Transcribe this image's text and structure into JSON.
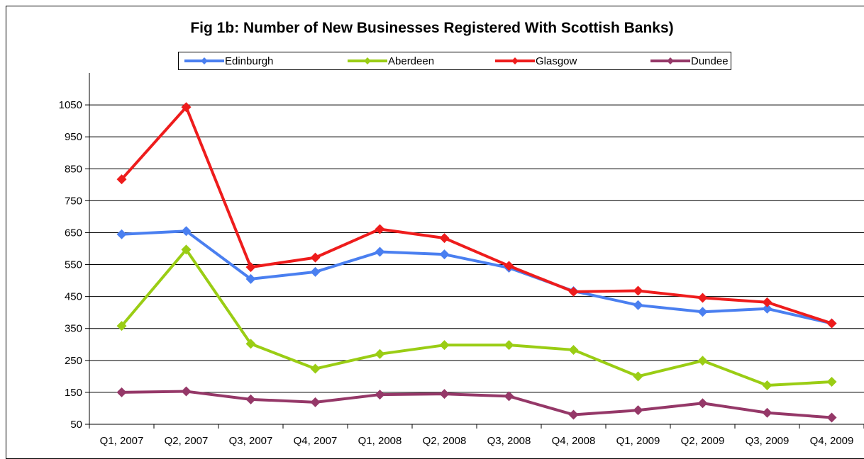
{
  "chart_data": {
    "type": "line",
    "title": "Fig 1b: Number of New Businesses Registered With Scottish Banks)",
    "xlabel": "",
    "ylabel": "",
    "categories": [
      "Q1, 2007",
      "Q2, 2007",
      "Q3, 2007",
      "Q4, 2007",
      "Q1, 2008",
      "Q2, 2008",
      "Q3, 2008",
      "Q4, 2008",
      "Q1, 2009",
      "Q2, 2009",
      "Q3, 2009",
      "Q4, 2009"
    ],
    "yticks": [
      "50",
      "150",
      "250",
      "350",
      "450",
      "550",
      "650",
      "750",
      "850",
      "950",
      "1050"
    ],
    "ylim": [
      50,
      1150
    ],
    "grid": true,
    "legend_position": "top",
    "series": [
      {
        "name": "Edinburgh",
        "color": "#4a7ff0",
        "values": [
          645,
          655,
          505,
          527,
          590,
          582,
          540,
          467,
          423,
          402,
          412,
          366
        ]
      },
      {
        "name": "Aberdeen",
        "color": "#9acd14",
        "values": [
          358,
          597,
          302,
          224,
          270,
          298,
          298,
          283,
          200,
          249,
          172,
          183
        ]
      },
      {
        "name": "Glasgow",
        "color": "#ee1c1c",
        "values": [
          817,
          1043,
          542,
          572,
          661,
          633,
          546,
          465,
          468,
          446,
          432,
          366
        ]
      },
      {
        "name": "Dundee",
        "color": "#953868",
        "values": [
          150,
          153,
          128,
          119,
          143,
          145,
          138,
          80,
          94,
          116,
          86,
          71
        ]
      }
    ]
  }
}
